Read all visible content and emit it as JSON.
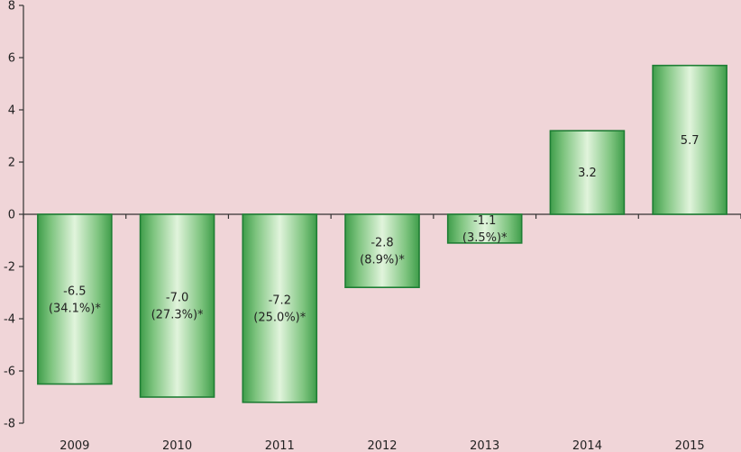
{
  "chart_data": {
    "type": "bar",
    "title": "",
    "xlabel": "",
    "ylabel": "",
    "categories": [
      "2009",
      "2010",
      "2011",
      "2012",
      "2013",
      "2014",
      "2015"
    ],
    "values": [
      -6.5,
      -7.0,
      -7.2,
      -2.8,
      -1.1,
      3.2,
      5.7
    ],
    "value_labels": [
      "-6.5",
      "-7.0",
      "-7.2",
      "-2.8",
      "-1.1",
      "3.2",
      "5.7"
    ],
    "secondary_labels": [
      "(34.1%)*",
      "(27.3%)*",
      "(25.0%)*",
      "(8.9%)*",
      "(3.5%)*",
      "",
      ""
    ],
    "ylim": [
      -8,
      8
    ],
    "yticks": [
      -8,
      -6,
      -4,
      -2,
      0,
      2,
      4,
      6,
      8
    ],
    "ytick_labels": [
      "-8",
      "-6",
      "-4",
      "-2",
      "0",
      "2",
      "4",
      "6",
      "8"
    ],
    "grid": false,
    "legend": "none",
    "colors": {
      "background": "#f0d5d8",
      "bar_edge": "#1e7e34",
      "bar_center": "#d8f0d0",
      "bar_side": "#5fb565",
      "axis": "#333333"
    }
  }
}
